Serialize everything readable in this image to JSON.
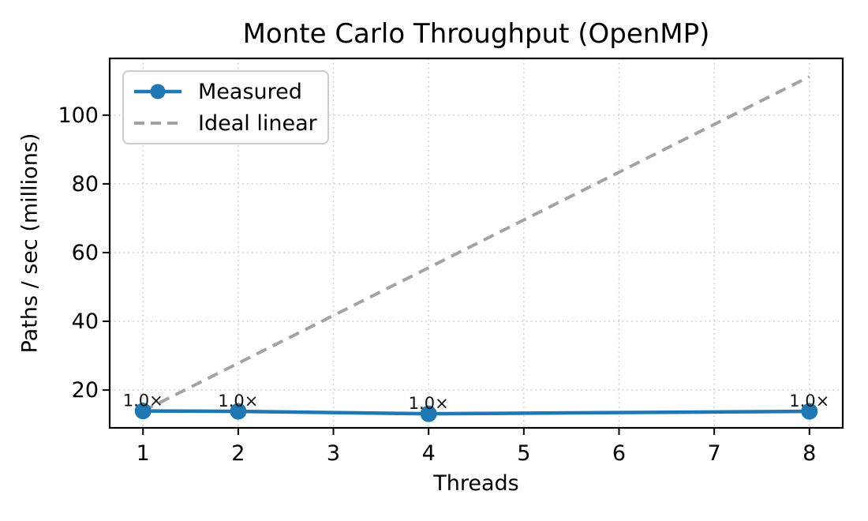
{
  "chart_data": {
    "type": "line",
    "title": "Monte Carlo Throughput (OpenMP)",
    "xlabel": "Threads",
    "ylabel": "Paths / sec (millions)",
    "x": [
      1,
      2,
      4,
      8
    ],
    "series": [
      {
        "name": "Measured",
        "color": "#1f77b4",
        "style": "solid",
        "marker": "circle",
        "values": [
          13.9,
          13.8,
          13.1,
          13.8
        ]
      },
      {
        "name": "Ideal linear",
        "color": "#a3a3a3",
        "style": "dashed",
        "marker": "none",
        "values": [
          13.9,
          27.8,
          55.6,
          111.2
        ]
      }
    ],
    "point_labels": [
      "1.0×",
      "1.0×",
      "1.0×",
      "1.0×"
    ],
    "xticks": [
      1,
      2,
      3,
      4,
      5,
      6,
      7,
      8
    ],
    "yticks": [
      20,
      40,
      60,
      80,
      100
    ],
    "xlim": [
      0.65,
      8.35
    ],
    "ylim": [
      9.0,
      116.5
    ],
    "grid": {
      "style": "dotted",
      "color": "#cdcdcd"
    },
    "legend": {
      "position": "upper-left"
    },
    "axis_color": "#000000",
    "annotation_color": "#111111"
  }
}
